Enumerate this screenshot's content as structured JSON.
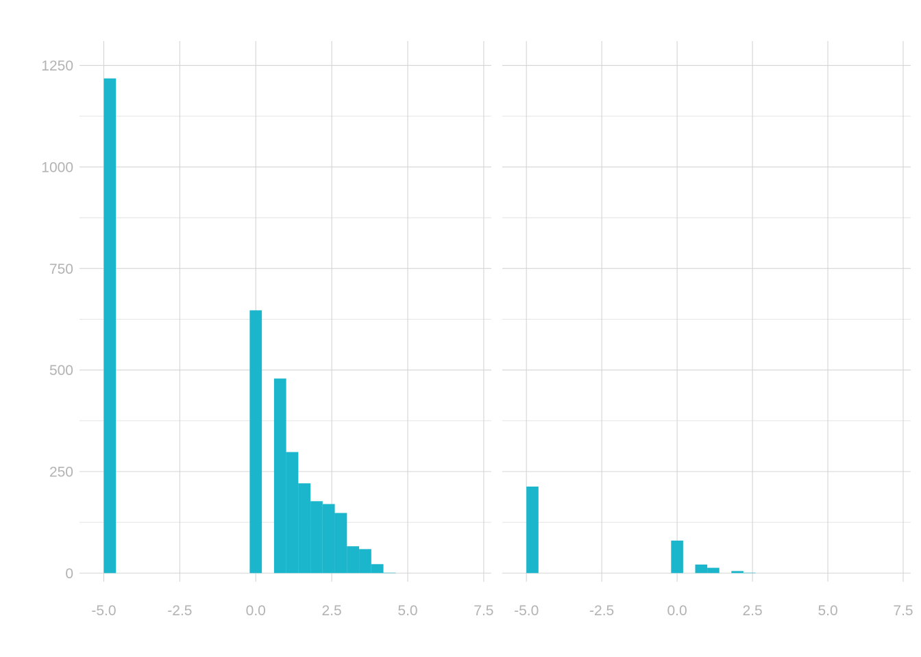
{
  "chart_data": [
    {
      "type": "bar",
      "panel": "left",
      "title": "",
      "xlabel": "",
      "ylabel": "",
      "xlim": [
        -5.8,
        7.75
      ],
      "ylim": [
        -55,
        1310
      ],
      "x_ticks": [
        -5.0,
        -2.5,
        0.0,
        2.5,
        5.0,
        7.5
      ],
      "x_tick_labels": [
        "-5.0",
        "-2.5",
        "0.0",
        "2.5",
        "5.0",
        "7.5"
      ],
      "y_ticks": [
        0,
        250,
        500,
        750,
        1000,
        1250
      ],
      "y_tick_labels": [
        "0",
        "250",
        "500",
        "750",
        "1000",
        "1250"
      ],
      "y_minor_ticks": [
        125,
        375,
        625,
        875,
        1125
      ],
      "grid": true,
      "bar_width": 0.4,
      "x": [
        -4.8,
        0.0,
        0.8,
        1.2,
        1.6,
        2.0,
        2.4,
        2.8,
        3.2,
        3.6,
        4.0,
        4.4
      ],
      "values": [
        1218,
        647,
        479,
        298,
        221,
        177,
        170,
        148,
        66,
        59,
        22,
        1
      ]
    },
    {
      "type": "bar",
      "panel": "right",
      "title": "",
      "xlabel": "",
      "ylabel": "",
      "xlim": [
        -5.8,
        7.75
      ],
      "ylim": [
        -55,
        1310
      ],
      "x_ticks": [
        -5.0,
        -2.5,
        0.0,
        2.5,
        5.0,
        7.5
      ],
      "x_tick_labels": [
        "-5.0",
        "-2.5",
        "0.0",
        "2.5",
        "5.0",
        "7.5"
      ],
      "y_ticks": [
        0,
        250,
        500,
        750,
        1000,
        1250
      ],
      "y_minor_ticks": [
        125,
        375,
        625,
        875,
        1125
      ],
      "grid": true,
      "bar_width": 0.4,
      "x": [
        -4.8,
        0.0,
        0.8,
        1.2,
        2.0,
        2.4
      ],
      "values": [
        213,
        80,
        21,
        13,
        5,
        1
      ]
    }
  ],
  "colors": {
    "bar": "#1bb6cc",
    "grid": "#d4d4d4",
    "tick_label": "#b3b3b3",
    "background": "#ffffff"
  }
}
